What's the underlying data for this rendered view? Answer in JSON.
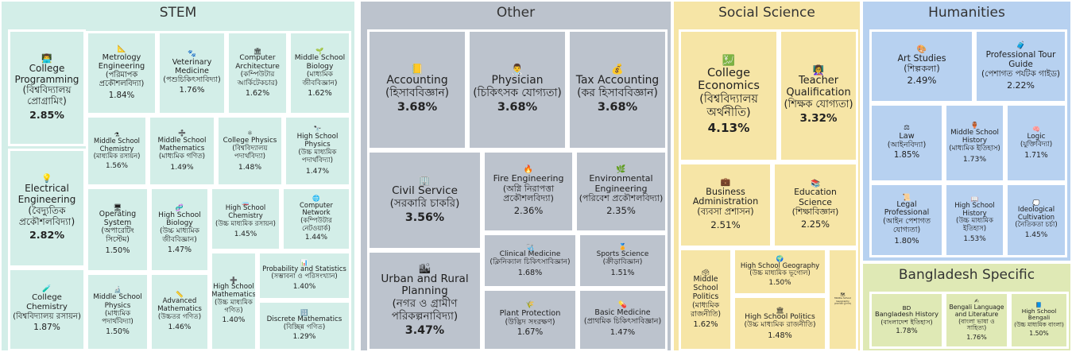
{
  "chart_data": {
    "type": "treemap",
    "groups": [
      {
        "id": "stem",
        "name": "STEM",
        "color": "#d3eee8",
        "items": [
          {
            "label": "College Programming\n(বিশ্ববিদ্যালয় প্রোগ্রামিং)",
            "value": 2.85,
            "icon": "👨‍💻"
          },
          {
            "label": "Electrical Engineering\n(বৈদ্যুতিক প্রকৌশলবিদ্যা)",
            "value": 2.82,
            "icon": "💡"
          },
          {
            "label": "College Chemistry\n(বিশ্ববিদ্যালয় রসায়ন)",
            "value": 1.87,
            "icon": "🧪"
          },
          {
            "label": "Metrology Engineering\n(পরিমাপক প্রকৌশলবিদ্যা)",
            "value": 1.84,
            "icon": "📐"
          },
          {
            "label": "Veterinary Medicine\n(পশুচিকিৎসাবিদ্যা)",
            "value": 1.76,
            "icon": "🐾"
          },
          {
            "label": "Computer Architecture\n(কম্পিউটার আর্কিটেকচার)",
            "value": 1.62,
            "icon": "🏛"
          },
          {
            "label": "Middle School Biology\n(মাধ্যমিক জীববিজ্ঞান)",
            "value": 1.62,
            "icon": "🌱"
          },
          {
            "label": "Middle School Chemistry\n(মাধ্যমিক রসায়ন)",
            "value": 1.56,
            "icon": "⚗"
          },
          {
            "label": "Middle School Mathematics\n(মাধ্যমিক গণিত)",
            "value": 1.49,
            "icon": "➗"
          },
          {
            "label": "College Physics\n(বিশ্ববিদ্যালয় পদার্থবিদ্যা)",
            "value": 1.48,
            "icon": "⚛"
          },
          {
            "label": "High School Physics\n(উচ্চ মাধ্যমিক পদার্থবিদ্যা)",
            "value": 1.47,
            "icon": "🔭"
          },
          {
            "label": "Operating System\n(অপারেটিং সিস্টেম)",
            "value": 1.5,
            "icon": "🖥"
          },
          {
            "label": "High School Biology\n(উচ্চ মাধ্যমিক জীববিজ্ঞান)",
            "value": 1.47,
            "icon": "🧬"
          },
          {
            "label": "High School Chemistry\n(উচ্চ মাধ্যমিক রসায়ন)",
            "value": 1.45,
            "icon": "🧫"
          },
          {
            "label": "Computer Network\n(কম্পিউটার নেটওয়ার্ক)",
            "value": 1.44,
            "icon": "🌐"
          },
          {
            "label": "Middle School Physics\n(মাধ্যমিক পদার্থবিদ্যা)",
            "value": 1.5,
            "icon": "🔬"
          },
          {
            "label": "Advanced Mathematics\n(উচ্চতর গণিত)",
            "value": 1.46,
            "icon": "📏"
          },
          {
            "label": "High School Mathematics\n(উচ্চ মাধ্যমিক গণিত)",
            "value": 1.4,
            "icon": "➕"
          },
          {
            "label": "Probability and Statistics\n(সম্ভাবনা ও পরিসংখ্যান)",
            "value": 1.4,
            "icon": "📊"
          },
          {
            "label": "Discrete Mathematics\n(বিচ্ছিন্ন গণিত)",
            "value": 1.29,
            "icon": "🔢"
          }
        ]
      },
      {
        "id": "other",
        "name": "Other",
        "color": "#bcc3cd",
        "items": [
          {
            "label": "Accounting\n(হিসাববিজ্ঞান)",
            "value": 3.68,
            "icon": "📒"
          },
          {
            "label": "Physician\n(চিকিৎসক যোগ্যতা)",
            "value": 3.68,
            "icon": "👨‍⚕️"
          },
          {
            "label": "Tax Accounting\n(কর হিসাববিজ্ঞান)",
            "value": 3.68,
            "icon": "💰"
          },
          {
            "label": "Civil Service\n(সরকারি চাকরি)",
            "value": 3.56,
            "icon": "🏢"
          },
          {
            "label": "Fire Engineering\n(অগ্নি নিরাপত্তা প্রকৌশলবিদ্যা)",
            "value": 2.36,
            "icon": "🔥"
          },
          {
            "label": "Environmental Engineering\n(পরিবেশ প্রকৌশলবিদ্যা)",
            "value": 2.35,
            "icon": "🌿"
          },
          {
            "label": "Urban and Rural Planning\n(নগর ও গ্রামীণ পরিকল্পনাবিদ্যা)",
            "value": 3.47,
            "icon": "🏙"
          },
          {
            "label": "Clinical Medicine\n(ক্লিনিক্যাল চিকিৎসাবিজ্ঞান)",
            "value": 1.68,
            "icon": "🩺"
          },
          {
            "label": "Sports Science\n(ক্রীড়াবিজ্ঞান)",
            "value": 1.51,
            "icon": "🏅"
          },
          {
            "label": "Plant Protection\n(উদ্ভিদ সংরক্ষণ)",
            "value": 1.67,
            "icon": "🌾"
          },
          {
            "label": "Basic Medicine\n(প্রাথমিক চিকিৎসাবিজ্ঞান)",
            "value": 1.47,
            "icon": "💊"
          }
        ]
      },
      {
        "id": "social",
        "name": "Social Science",
        "color": "#f6e5a6",
        "items": [
          {
            "label": "College Economics\n(বিশ্ববিদ্যালয় অর্থনীতি)",
            "value": 4.13,
            "icon": "💹"
          },
          {
            "label": "Teacher Qualification\n(শিক্ষক যোগ্যতা)",
            "value": 3.32,
            "icon": "👩‍🏫"
          },
          {
            "label": "Business Administration\n(ব্যবসা প্রশাসন)",
            "value": 2.51,
            "icon": "💼"
          },
          {
            "label": "Education Science\n(শিক্ষাবিজ্ঞান)",
            "value": 2.25,
            "icon": "📚"
          },
          {
            "label": "Middle School Politics\n(মাধ্যমিক রাজনীতি)",
            "value": 1.62,
            "icon": "🗳"
          },
          {
            "label": "High School Geography\n(উচ্চ মাধ্যমিক ভূগোল)",
            "value": 1.5,
            "icon": "🌍"
          },
          {
            "label": "High School Politics\n(উচ্চ মাধ্যমিক রাজনীতি)",
            "value": 1.48,
            "icon": "🏛"
          },
          {
            "label": "Middle School Geography\n(মাধ্যমিক ভূগোল)",
            "value": null,
            "icon": "🗺"
          }
        ]
      },
      {
        "id": "humanities",
        "name": "Humanities",
        "color": "#b7d1f0",
        "items": [
          {
            "label": "Art Studies\n(শিল্পকলা)",
            "value": 2.49,
            "icon": "🎨"
          },
          {
            "label": "Professional Tour Guide\n(পেশাগত পর্যটক গাইড)",
            "value": 2.22,
            "icon": "🧳"
          },
          {
            "label": "Law\n(আইনবিদ্যা)",
            "value": 1.85,
            "icon": "⚖"
          },
          {
            "label": "Middle School History\n(মাধ্যমিক ইতিহাস)",
            "value": 1.73,
            "icon": "🏺"
          },
          {
            "label": "Logic\n(যুক্তিবিদ্যা)",
            "value": 1.71,
            "icon": "🧠"
          },
          {
            "label": "Legal Professional\n(আইন পেশাগত যোগ্যতা)",
            "value": 1.8,
            "icon": "📜"
          },
          {
            "label": "High School History\n(উচ্চ মাধ্যমিক ইতিহাস)",
            "value": 1.53,
            "icon": "📖"
          },
          {
            "label": "Ideological Cultivation\n(নৈতিকতা চর্চা)",
            "value": 1.45,
            "icon": "💭"
          }
        ]
      },
      {
        "id": "bangladesh",
        "name": "Bangladesh Specific",
        "color": "#dfe9b5",
        "items": [
          {
            "label": "Bangladesh History\n(বাংলাদেশ ইতিহাস)",
            "value": 1.78,
            "icon": "BD"
          },
          {
            "label": "Bengali Language and Literature\n(বাংলা ভাষা ও সাহিত্য)",
            "value": 1.76,
            "icon": "✍"
          },
          {
            "label": "High School Bengali\n(উচ্চ মাধ্যমিক বাংলা)",
            "value": 1.5,
            "icon": "📘"
          }
        ]
      }
    ]
  }
}
